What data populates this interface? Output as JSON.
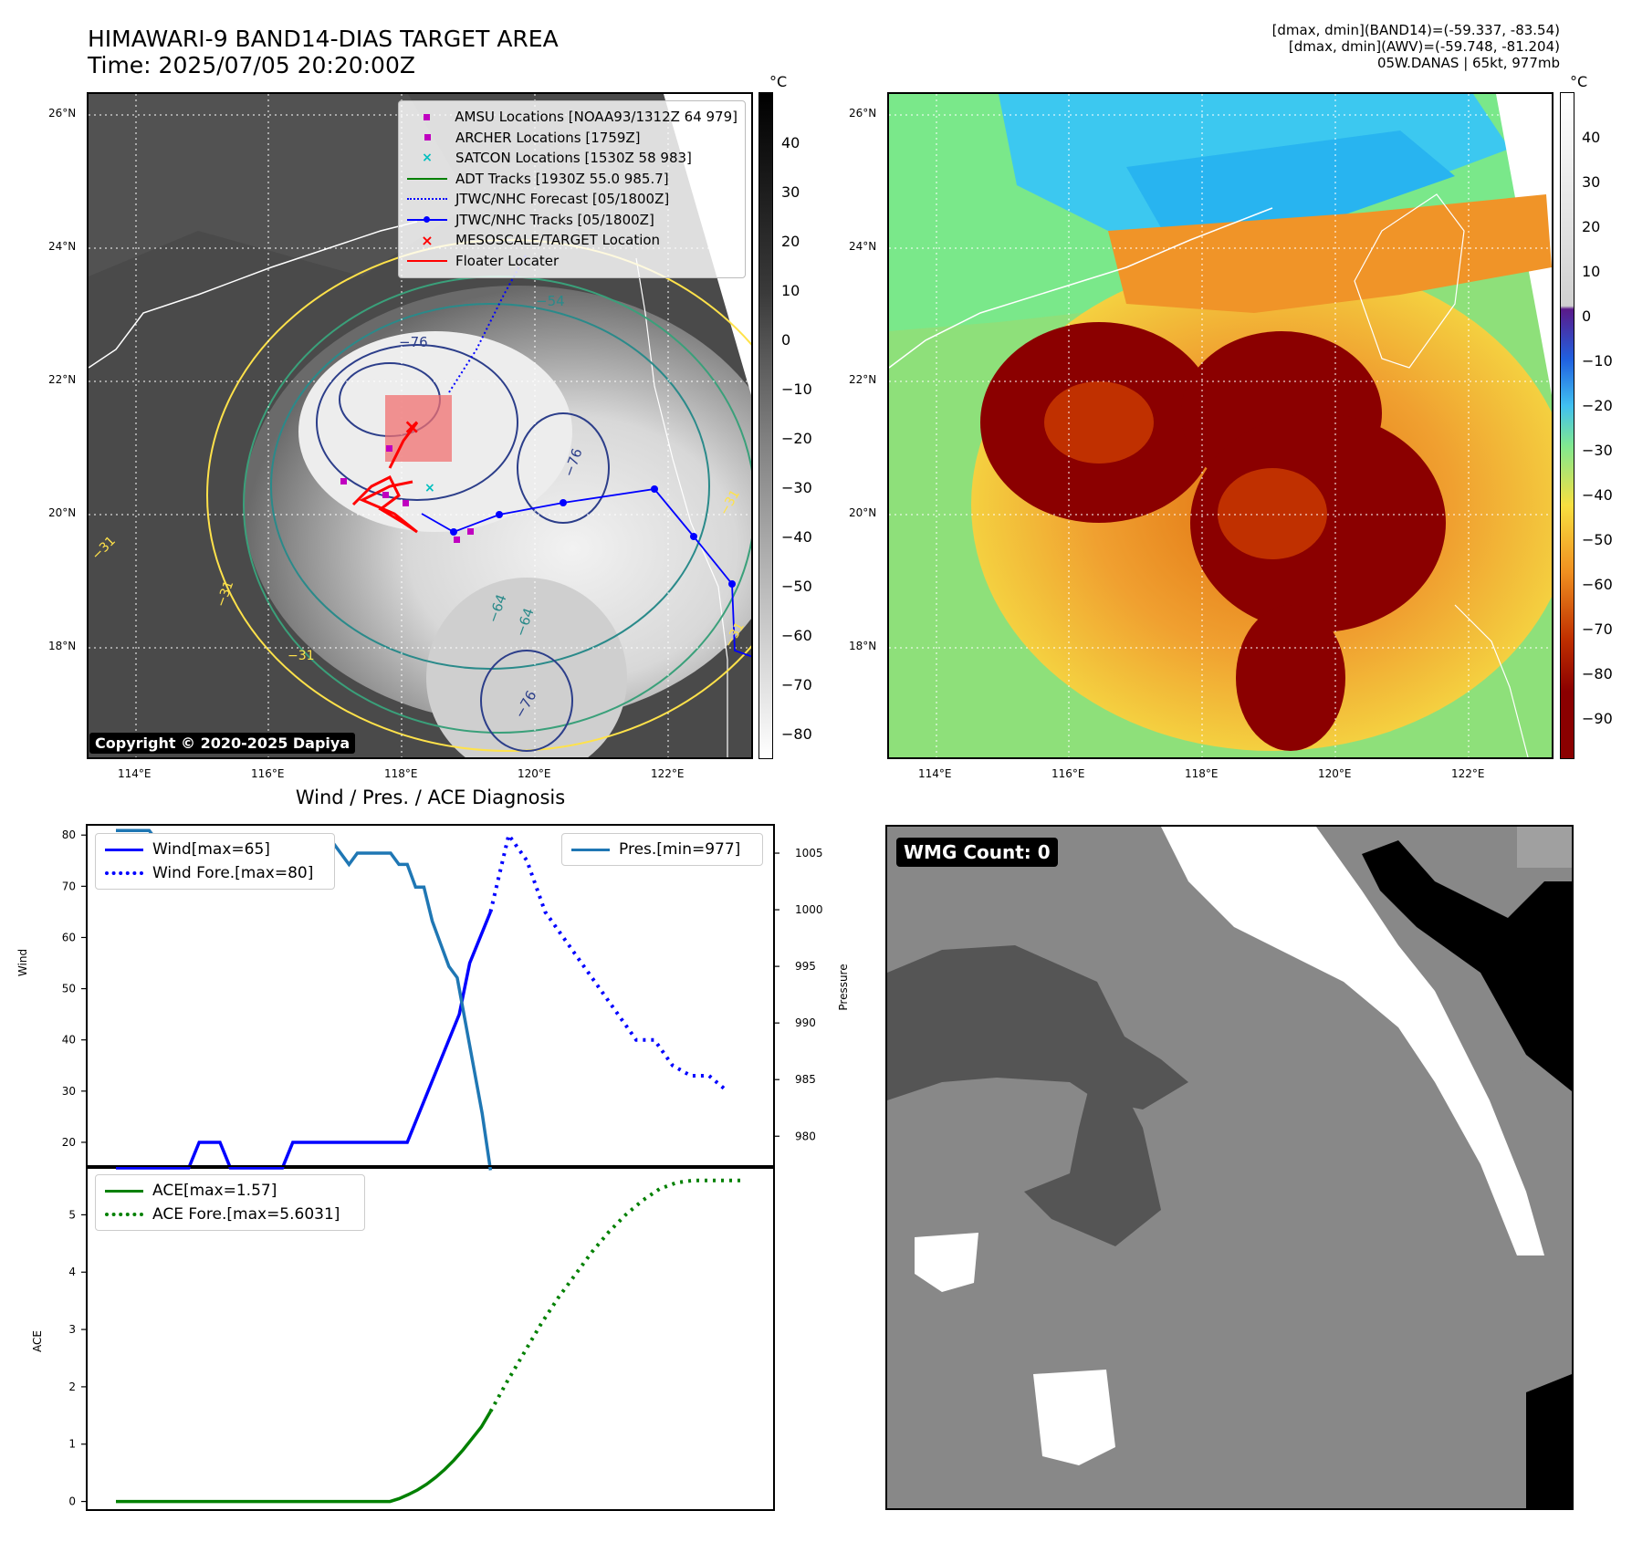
{
  "header": {
    "title_line1": "HIMAWARI-9 BAND14-DIAS TARGET AREA",
    "title_line2": "Time: 2025/07/05 20:20:00Z",
    "info_line1": "[dmax, dmin](BAND14)=(-59.337, -83.54)",
    "info_line2": "[dmax, dmin](AWV)=(-59.748, -81.204)",
    "info_line3": "05W.DANAS | 65kt, 977mb"
  },
  "map": {
    "lat_labels": [
      "26°N",
      "24°N",
      "22°N",
      "20°N",
      "18°N"
    ],
    "lon_labels": [
      "114°E",
      "116°E",
      "118°E",
      "120°E",
      "122°E"
    ],
    "contour_labels": [
      "−76",
      "−54",
      "−76",
      "−64",
      "−64",
      "−76",
      "−31",
      "−31",
      "−31",
      "−31",
      "−31"
    ],
    "copyright": "Copyright © 2020-2025 Dapiya",
    "colorbar_unit": "°C",
    "colorbar_ticks": [
      "40",
      "30",
      "20",
      "10",
      "0",
      "−10",
      "−20",
      "−30",
      "−40",
      "−50",
      "−60",
      "−70",
      "−80"
    ],
    "legend": [
      {
        "label": "AMSU Locations [NOAA93/1312Z 64 979]",
        "icon": "square-marker",
        "color": "#c000c0"
      },
      {
        "label": "ARCHER Locations [1759Z]",
        "icon": "square-marker",
        "color": "#c000c0"
      },
      {
        "label": "SATCON Locations [1530Z 58 983]",
        "icon": "x-marker",
        "color": "#00bfbf"
      },
      {
        "label": "ADT Tracks [1930Z 55.0 985.7]",
        "icon": "solid-line",
        "color": "#008000"
      },
      {
        "label": "JTWC/NHC Forecast [05/1800Z]",
        "icon": "dotted-line",
        "color": "#0000ff"
      },
      {
        "label": "JTWC/NHC Tracks [05/1800Z]",
        "icon": "line-dot",
        "color": "#0000ff"
      },
      {
        "label": "MESOSCALE/TARGET Location",
        "icon": "x-marker",
        "color": "#ff0000"
      },
      {
        "label": "Floater Locater",
        "icon": "solid-line",
        "color": "#ff0000"
      }
    ]
  },
  "awv_map": {
    "lat_labels": [
      "26°N",
      "24°N",
      "22°N",
      "20°N",
      "18°N"
    ],
    "lon_labels": [
      "114°E",
      "116°E",
      "118°E",
      "120°E",
      "122°E"
    ],
    "colorbar_unit": "°C",
    "colorbar_ticks": [
      "40",
      "30",
      "20",
      "10",
      "0",
      "−10",
      "−20",
      "−30",
      "−40",
      "−50",
      "−60",
      "−70",
      "−80",
      "−90"
    ]
  },
  "diag_title": "Wind / Pres. / ACE Diagnosis",
  "wmg_label": "WMG Count: 0",
  "chart_data": [
    {
      "type": "line",
      "title": "Wind / Pres. / ACE Diagnosis",
      "ylabel": "Wind",
      "y2label": "Pressure",
      "ylim": [
        15,
        82
      ],
      "y2lim": [
        977.2,
        1007.5
      ],
      "yticks": [
        20,
        30,
        40,
        50,
        60,
        70,
        80
      ],
      "y2ticks": [
        980,
        985,
        990,
        995,
        1000,
        1005
      ],
      "series": [
        {
          "name": "Wind[max=65]",
          "style": "solid",
          "color": "#0000ff",
          "axis": "left",
          "values": [
            15,
            15,
            15,
            15,
            15,
            15,
            15,
            15,
            20,
            20,
            20,
            15,
            15,
            15,
            15,
            15,
            15,
            20,
            20,
            20,
            20,
            20,
            20,
            20,
            20,
            20,
            20,
            20,
            20,
            25,
            30,
            35,
            40,
            45,
            55,
            60,
            65
          ]
        },
        {
          "name": "Wind Fore.[max=80]",
          "style": "dotted",
          "color": "#0000ff",
          "axis": "left",
          "values": [
            65,
            80,
            75,
            65,
            60,
            55,
            50,
            45,
            40,
            40,
            35,
            33,
            33,
            30
          ]
        },
        {
          "name": "Pres.[min=977]",
          "style": "solid",
          "color": "#1f77b4",
          "axis": "right",
          "values": [
            1007,
            1007,
            1007,
            1007,
            1007,
            1006,
            1006,
            1006,
            1006,
            1006,
            1006,
            1006,
            1006,
            1006,
            1005,
            1005,
            1005,
            1005,
            1005,
            1005,
            1006,
            1005,
            1006,
            1006,
            1006,
            1006,
            1006,
            1005,
            1004,
            1005,
            1005,
            1005,
            1005,
            1005,
            1004,
            1004,
            1002,
            1002,
            999,
            997,
            995,
            994,
            990,
            986,
            982,
            977
          ]
        }
      ]
    },
    {
      "type": "line",
      "ylabel": "ACE",
      "ylim": [
        -0.15,
        5.85
      ],
      "yticks": [
        0,
        1,
        2,
        3,
        4,
        5
      ],
      "series": [
        {
          "name": "ACE[max=1.57]",
          "style": "solid",
          "color": "#008000",
          "values": [
            0,
            0,
            0,
            0,
            0,
            0,
            0,
            0,
            0,
            0,
            0,
            0,
            0,
            0,
            0,
            0,
            0,
            0,
            0,
            0,
            0,
            0,
            0,
            0,
            0,
            0,
            0,
            0,
            0,
            0,
            0,
            0.05,
            0.12,
            0.2,
            0.3,
            0.42,
            0.56,
            0.72,
            0.9,
            1.1,
            1.3,
            1.57
          ]
        },
        {
          "name": "ACE Fore.[max=5.6031]",
          "style": "dotted",
          "color": "#008000",
          "values": [
            1.57,
            2.1,
            2.6,
            3.1,
            3.55,
            3.95,
            4.35,
            4.7,
            5.0,
            5.25,
            5.45,
            5.56,
            5.6,
            5.6,
            5.6,
            5.6
          ]
        }
      ]
    }
  ]
}
